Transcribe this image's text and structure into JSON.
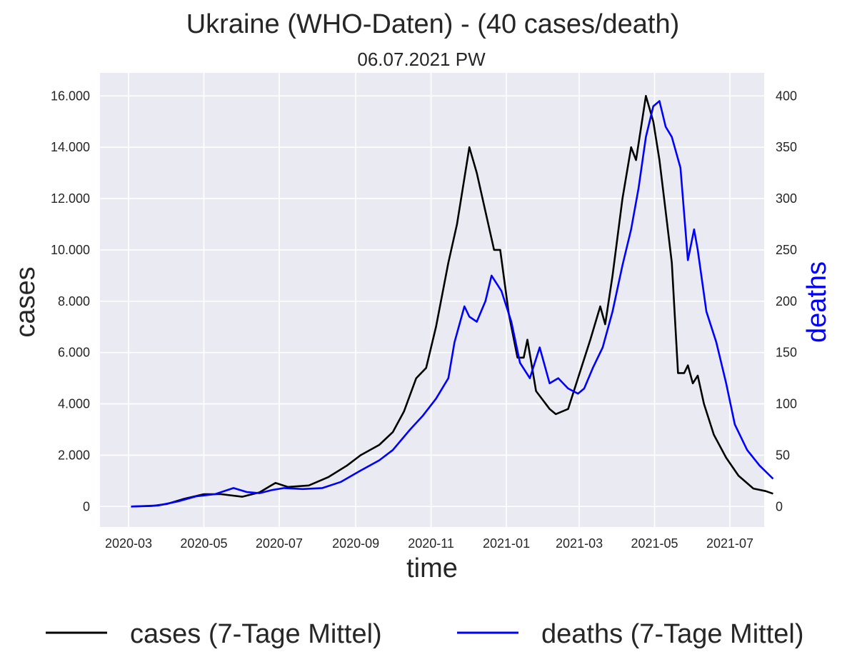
{
  "chart_data": {
    "type": "line",
    "title": "Ukraine (WHO-Daten) - (40 cases/death)",
    "subtitle": "06.07.2021 PW",
    "xlabel": "time",
    "ylabel_left": "cases",
    "ylabel_right": "deaths",
    "x_ticks": [
      "2020-03",
      "2020-05",
      "2020-07",
      "2020-09",
      "2020-11",
      "2021-01",
      "2021-03",
      "2021-05",
      "2021-07"
    ],
    "y_left_ticks": [
      0,
      2000,
      4000,
      6000,
      8000,
      10000,
      12000,
      14000,
      16000
    ],
    "y_left_tick_labels": [
      "0",
      "2.000",
      "4.000",
      "6.000",
      "8.000",
      "10.000",
      "12.000",
      "14.000",
      "16.000"
    ],
    "y_right_ticks": [
      0,
      50,
      100,
      150,
      200,
      250,
      300,
      350,
      400
    ],
    "y_right_tick_labels": [
      "0",
      "50",
      "100",
      "150",
      "200",
      "250",
      "300",
      "350",
      "400"
    ],
    "ylim_left": [
      -800,
      16900
    ],
    "ylim_right": [
      -20,
      422.5
    ],
    "grid": true,
    "legend_position": "bottom",
    "series": [
      {
        "name": "cases (7-Tage Mittel)",
        "axis": "left",
        "color": "#000000",
        "points": [
          [
            "2020-03-03",
            0
          ],
          [
            "2020-03-20",
            20
          ],
          [
            "2020-04-01",
            100
          ],
          [
            "2020-04-15",
            300
          ],
          [
            "2020-05-01",
            480
          ],
          [
            "2020-05-15",
            480
          ],
          [
            "2020-06-01",
            380
          ],
          [
            "2020-06-15",
            550
          ],
          [
            "2020-06-28",
            920
          ],
          [
            "2020-07-08",
            760
          ],
          [
            "2020-07-25",
            820
          ],
          [
            "2020-08-10",
            1150
          ],
          [
            "2020-08-25",
            1600
          ],
          [
            "2020-09-05",
            2000
          ],
          [
            "2020-09-20",
            2400
          ],
          [
            "2020-10-01",
            2900
          ],
          [
            "2020-10-10",
            3700
          ],
          [
            "2020-10-20",
            5000
          ],
          [
            "2020-10-28",
            5400
          ],
          [
            "2020-11-05",
            7000
          ],
          [
            "2020-11-15",
            9500
          ],
          [
            "2020-11-22",
            11000
          ],
          [
            "2020-11-28",
            12800
          ],
          [
            "2020-12-02",
            14000
          ],
          [
            "2020-12-08",
            13000
          ],
          [
            "2020-12-15",
            11500
          ],
          [
            "2020-12-22",
            10000
          ],
          [
            "2020-12-27",
            10000
          ],
          [
            "2021-01-03",
            7500
          ],
          [
            "2021-01-10",
            5800
          ],
          [
            "2021-01-15",
            5800
          ],
          [
            "2021-01-18",
            6500
          ],
          [
            "2021-01-25",
            4500
          ],
          [
            "2021-02-05",
            3800
          ],
          [
            "2021-02-10",
            3600
          ],
          [
            "2021-02-20",
            3800
          ],
          [
            "2021-02-28",
            5000
          ],
          [
            "2021-03-10",
            6500
          ],
          [
            "2021-03-18",
            7800
          ],
          [
            "2021-03-22",
            7100
          ],
          [
            "2021-03-28",
            9000
          ],
          [
            "2021-04-05",
            12000
          ],
          [
            "2021-04-12",
            14000
          ],
          [
            "2021-04-16",
            13500
          ],
          [
            "2021-04-24",
            16000
          ],
          [
            "2021-04-30",
            15000
          ],
          [
            "2021-05-05",
            13500
          ],
          [
            "2021-05-10",
            11500
          ],
          [
            "2021-05-15",
            9500
          ],
          [
            "2021-05-20",
            5200
          ],
          [
            "2021-05-25",
            5200
          ],
          [
            "2021-05-28",
            5500
          ],
          [
            "2021-06-01",
            4800
          ],
          [
            "2021-06-05",
            5100
          ],
          [
            "2021-06-10",
            4000
          ],
          [
            "2021-06-18",
            2800
          ],
          [
            "2021-06-28",
            1900
          ],
          [
            "2021-07-08",
            1200
          ],
          [
            "2021-07-20",
            700
          ],
          [
            "2021-07-30",
            600
          ],
          [
            "2021-08-05",
            500
          ]
        ]
      },
      {
        "name": "deaths (7-Tage Mittel)",
        "axis": "right",
        "color": "#0000ff",
        "points": [
          [
            "2020-03-03",
            0
          ],
          [
            "2020-03-25",
            1
          ],
          [
            "2020-04-10",
            5
          ],
          [
            "2020-04-25",
            10
          ],
          [
            "2020-05-10",
            12
          ],
          [
            "2020-05-25",
            18
          ],
          [
            "2020-06-05",
            14
          ],
          [
            "2020-06-15",
            13
          ],
          [
            "2020-06-25",
            16
          ],
          [
            "2020-07-05",
            18
          ],
          [
            "2020-07-20",
            17
          ],
          [
            "2020-08-05",
            18
          ],
          [
            "2020-08-20",
            24
          ],
          [
            "2020-09-05",
            35
          ],
          [
            "2020-09-20",
            45
          ],
          [
            "2020-10-01",
            55
          ],
          [
            "2020-10-15",
            75
          ],
          [
            "2020-10-25",
            88
          ],
          [
            "2020-11-05",
            105
          ],
          [
            "2020-11-15",
            125
          ],
          [
            "2020-11-20",
            160
          ],
          [
            "2020-11-28",
            195
          ],
          [
            "2020-12-02",
            185
          ],
          [
            "2020-12-08",
            180
          ],
          [
            "2020-12-15",
            200
          ],
          [
            "2020-12-20",
            225
          ],
          [
            "2020-12-28",
            210
          ],
          [
            "2021-01-05",
            180
          ],
          [
            "2021-01-12",
            140
          ],
          [
            "2021-01-20",
            125
          ],
          [
            "2021-01-28",
            155
          ],
          [
            "2021-02-05",
            120
          ],
          [
            "2021-02-12",
            125
          ],
          [
            "2021-02-20",
            115
          ],
          [
            "2021-02-28",
            110
          ],
          [
            "2021-03-05",
            115
          ],
          [
            "2021-03-12",
            135
          ],
          [
            "2021-03-20",
            155
          ],
          [
            "2021-03-28",
            190
          ],
          [
            "2021-04-05",
            235
          ],
          [
            "2021-04-12",
            270
          ],
          [
            "2021-04-18",
            310
          ],
          [
            "2021-04-24",
            360
          ],
          [
            "2021-04-30",
            390
          ],
          [
            "2021-05-05",
            395
          ],
          [
            "2021-05-10",
            370
          ],
          [
            "2021-05-15",
            360
          ],
          [
            "2021-05-22",
            330
          ],
          [
            "2021-05-28",
            240
          ],
          [
            "2021-06-02",
            270
          ],
          [
            "2021-06-05",
            250
          ],
          [
            "2021-06-12",
            190
          ],
          [
            "2021-06-20",
            160
          ],
          [
            "2021-06-28",
            120
          ],
          [
            "2021-07-05",
            80
          ],
          [
            "2021-07-15",
            55
          ],
          [
            "2021-07-25",
            40
          ],
          [
            "2021-08-05",
            27
          ]
        ]
      }
    ]
  }
}
